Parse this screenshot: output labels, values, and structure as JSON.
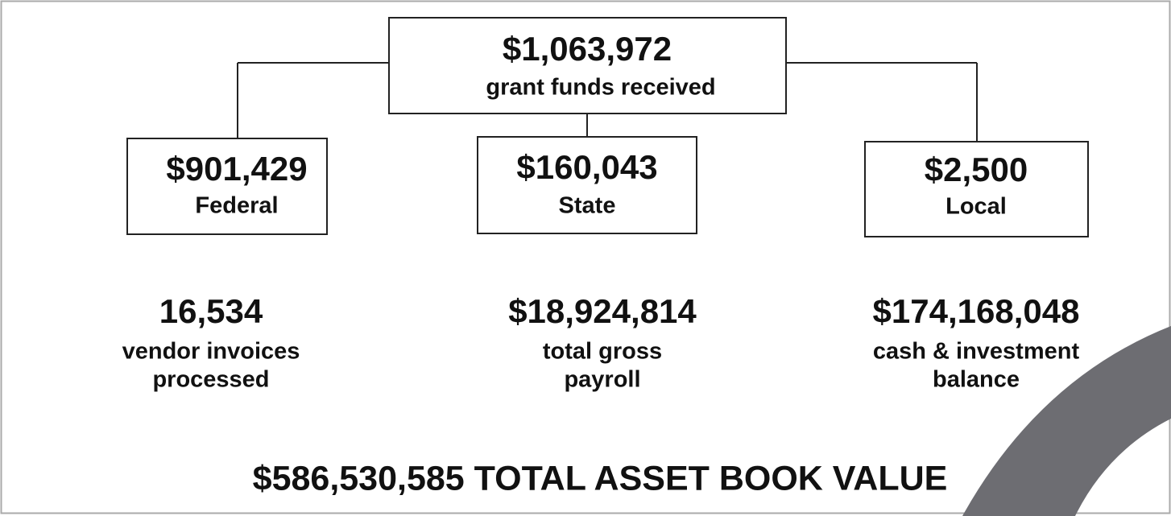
{
  "top": {
    "value": "$1,063,972",
    "label": "grant funds received"
  },
  "sources": [
    {
      "value": "$901,429",
      "label": "Federal"
    },
    {
      "value": "$160,043",
      "label": "State"
    },
    {
      "value": "$2,500",
      "label": "Local"
    }
  ],
  "stats": [
    {
      "value": "16,534",
      "label_lines": [
        "vendor invoices",
        "processed"
      ]
    },
    {
      "value": "$18,924,814",
      "label_lines": [
        "total gross",
        "payroll"
      ]
    },
    {
      "value": "$174,168,048",
      "label_lines": [
        "cash & investment",
        "balance"
      ]
    }
  ],
  "footer": "$586,530,585 TOTAL ASSET BOOK VALUE"
}
